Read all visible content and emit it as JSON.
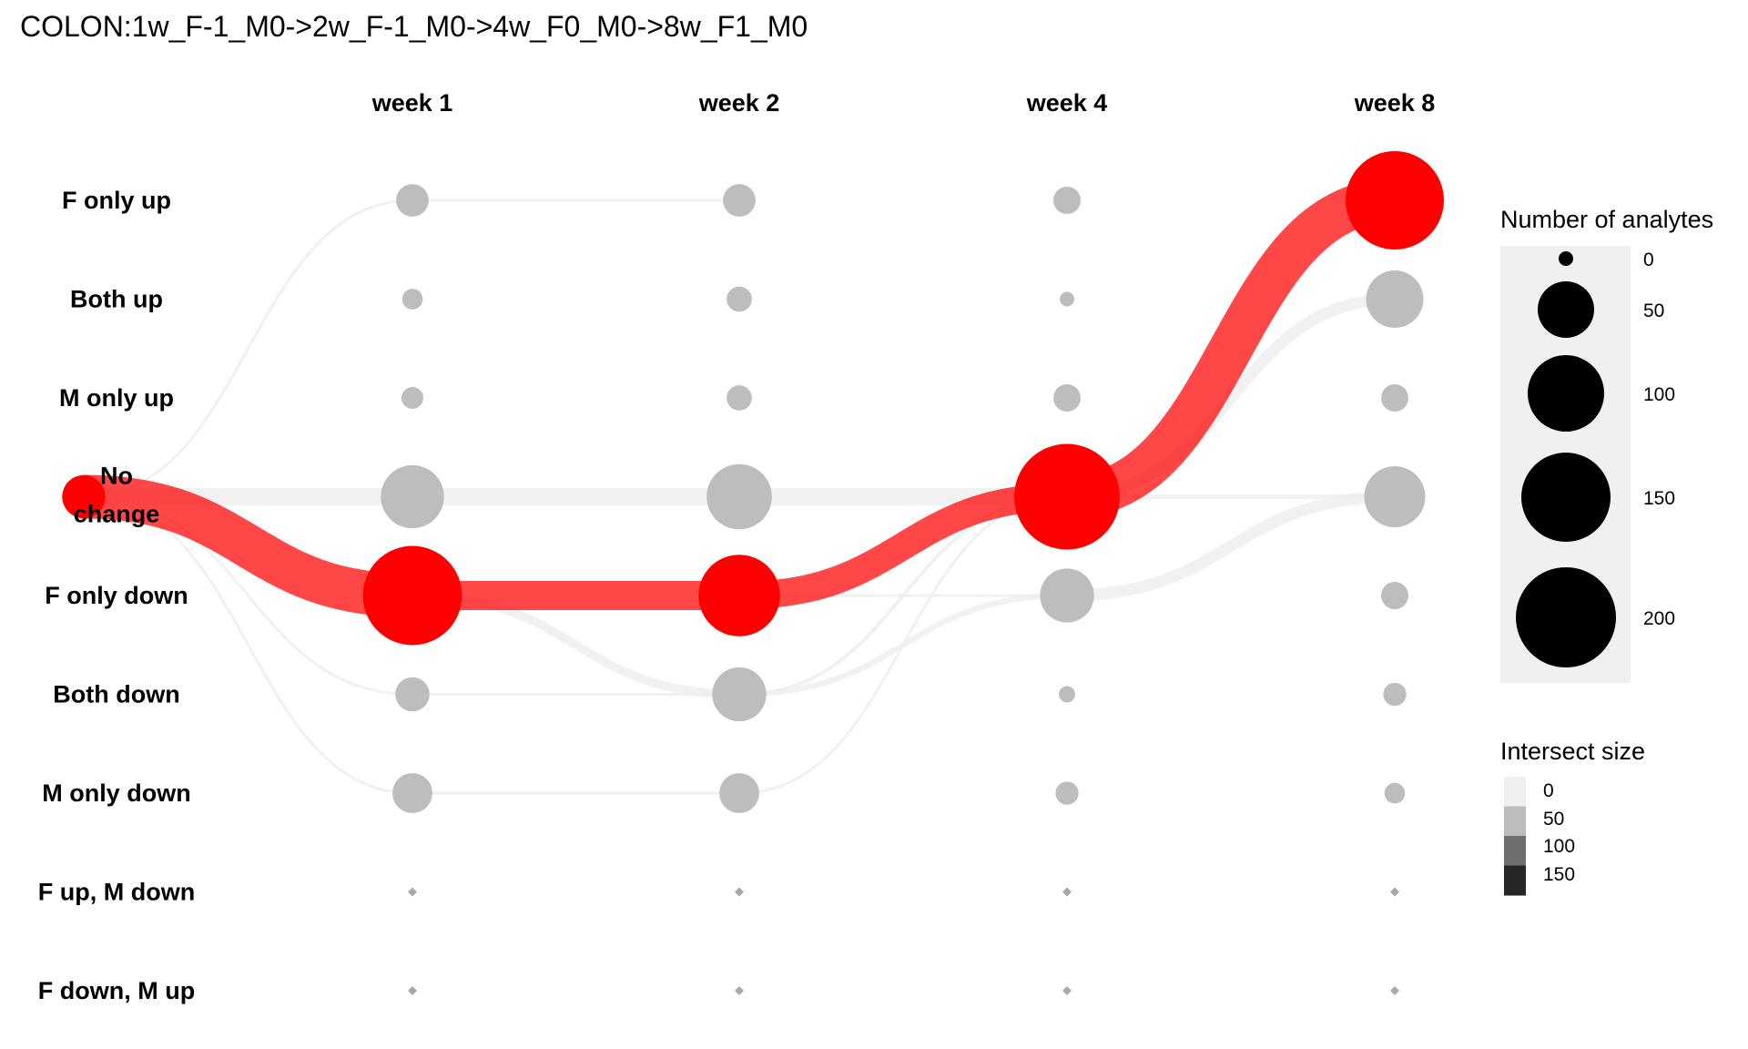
{
  "chart_data": {
    "type": "alluvial-dot",
    "title": "COLON:1w_F-1_M0->2w_F-1_M0->4w_F0_M0->8w_F1_M0",
    "columns": [
      "week 1",
      "week 2",
      "week 4",
      "week 8"
    ],
    "rows": [
      {
        "label": "F only up"
      },
      {
        "label": "Both up"
      },
      {
        "label": "M only up"
      },
      {
        "label": "No change",
        "label_lines": [
          "No",
          "change"
        ]
      },
      {
        "label": "F only down"
      },
      {
        "label": "Both down"
      },
      {
        "label": "M only down"
      },
      {
        "label": "F up, M down"
      },
      {
        "label": "F down, M up"
      }
    ],
    "start_node": {
      "row": 3,
      "value": 35,
      "color": "#ff0000"
    },
    "node_values": [
      [
        20,
        20,
        14,
        182
      ],
      [
        8,
        12,
        4,
        62
      ],
      [
        9,
        12,
        14,
        14
      ],
      [
        75,
        80,
        210,
        70
      ],
      [
        185,
        125,
        55,
        14
      ],
      [
        22,
        55,
        5,
        10
      ],
      [
        30,
        30,
        10,
        8
      ],
      [
        0,
        0,
        0,
        0
      ],
      [
        0,
        0,
        0,
        0
      ]
    ],
    "node_highlight": [
      [
        false,
        false,
        false,
        true
      ],
      [
        false,
        false,
        false,
        false
      ],
      [
        false,
        false,
        false,
        false
      ],
      [
        false,
        false,
        true,
        false
      ],
      [
        true,
        true,
        false,
        false
      ],
      [
        false,
        false,
        false,
        false
      ],
      [
        false,
        false,
        false,
        false
      ],
      [
        false,
        false,
        false,
        false
      ],
      [
        false,
        false,
        false,
        false
      ]
    ],
    "flows": [
      {
        "from_col": -1,
        "from_row": 3,
        "to_col": 0,
        "to_row": 4,
        "size": 150,
        "highlight": true
      },
      {
        "from_col": -1,
        "from_row": 3,
        "to_col": 0,
        "to_row": 3,
        "size": 60,
        "highlight": false
      },
      {
        "from_col": -1,
        "from_row": 3,
        "to_col": 0,
        "to_row": 5,
        "size": 8,
        "highlight": false
      },
      {
        "from_col": -1,
        "from_row": 3,
        "to_col": 0,
        "to_row": 6,
        "size": 6,
        "highlight": false
      },
      {
        "from_col": -1,
        "from_row": 3,
        "to_col": 0,
        "to_row": 0,
        "size": 4,
        "highlight": false
      },
      {
        "from_col": 0,
        "from_row": 4,
        "to_col": 1,
        "to_row": 4,
        "size": 100,
        "highlight": true
      },
      {
        "from_col": 0,
        "from_row": 4,
        "to_col": 1,
        "to_row": 5,
        "size": 30,
        "highlight": false
      },
      {
        "from_col": 0,
        "from_row": 3,
        "to_col": 1,
        "to_row": 3,
        "size": 60,
        "highlight": false
      },
      {
        "from_col": 0,
        "from_row": 0,
        "to_col": 1,
        "to_row": 0,
        "size": 5,
        "highlight": false
      },
      {
        "from_col": 0,
        "from_row": 5,
        "to_col": 1,
        "to_row": 5,
        "size": 8,
        "highlight": false
      },
      {
        "from_col": 0,
        "from_row": 6,
        "to_col": 1,
        "to_row": 6,
        "size": 10,
        "highlight": false
      },
      {
        "from_col": 1,
        "from_row": 4,
        "to_col": 2,
        "to_row": 3,
        "size": 95,
        "highlight": true
      },
      {
        "from_col": 1,
        "from_row": 4,
        "to_col": 2,
        "to_row": 4,
        "size": 10,
        "highlight": false
      },
      {
        "from_col": 1,
        "from_row": 3,
        "to_col": 2,
        "to_row": 3,
        "size": 60,
        "highlight": false
      },
      {
        "from_col": 1,
        "from_row": 5,
        "to_col": 2,
        "to_row": 4,
        "size": 20,
        "highlight": false
      },
      {
        "from_col": 1,
        "from_row": 5,
        "to_col": 2,
        "to_row": 3,
        "size": 12,
        "highlight": false
      },
      {
        "from_col": 1,
        "from_row": 6,
        "to_col": 2,
        "to_row": 3,
        "size": 8,
        "highlight": false
      },
      {
        "from_col": 2,
        "from_row": 3,
        "to_col": 3,
        "to_row": 0,
        "size": 150,
        "highlight": true
      },
      {
        "from_col": 2,
        "from_row": 3,
        "to_col": 3,
        "to_row": 1,
        "size": 40,
        "highlight": false
      },
      {
        "from_col": 2,
        "from_row": 3,
        "to_col": 3,
        "to_row": 3,
        "size": 15,
        "highlight": false
      },
      {
        "from_col": 2,
        "from_row": 4,
        "to_col": 3,
        "to_row": 3,
        "size": 40,
        "highlight": false
      }
    ],
    "legend_size": {
      "title": "Number of analytes",
      "values": [
        0,
        50,
        100,
        150,
        200
      ],
      "labels": [
        "0",
        "50",
        "100",
        "150",
        "200"
      ]
    },
    "legend_intersect": {
      "title": "Intersect size",
      "values": [
        0,
        50,
        100,
        150
      ],
      "labels": [
        "0",
        "50",
        "100",
        "150"
      ]
    },
    "colors": {
      "highlight": "#ff0000",
      "node": "#bdbdbd",
      "node_empty": "#a8a8a8",
      "legend_bg": "#f0f0f0",
      "flow_light": "#efefef",
      "flow_dark": "#262626",
      "legend_dot": "#000000"
    }
  }
}
